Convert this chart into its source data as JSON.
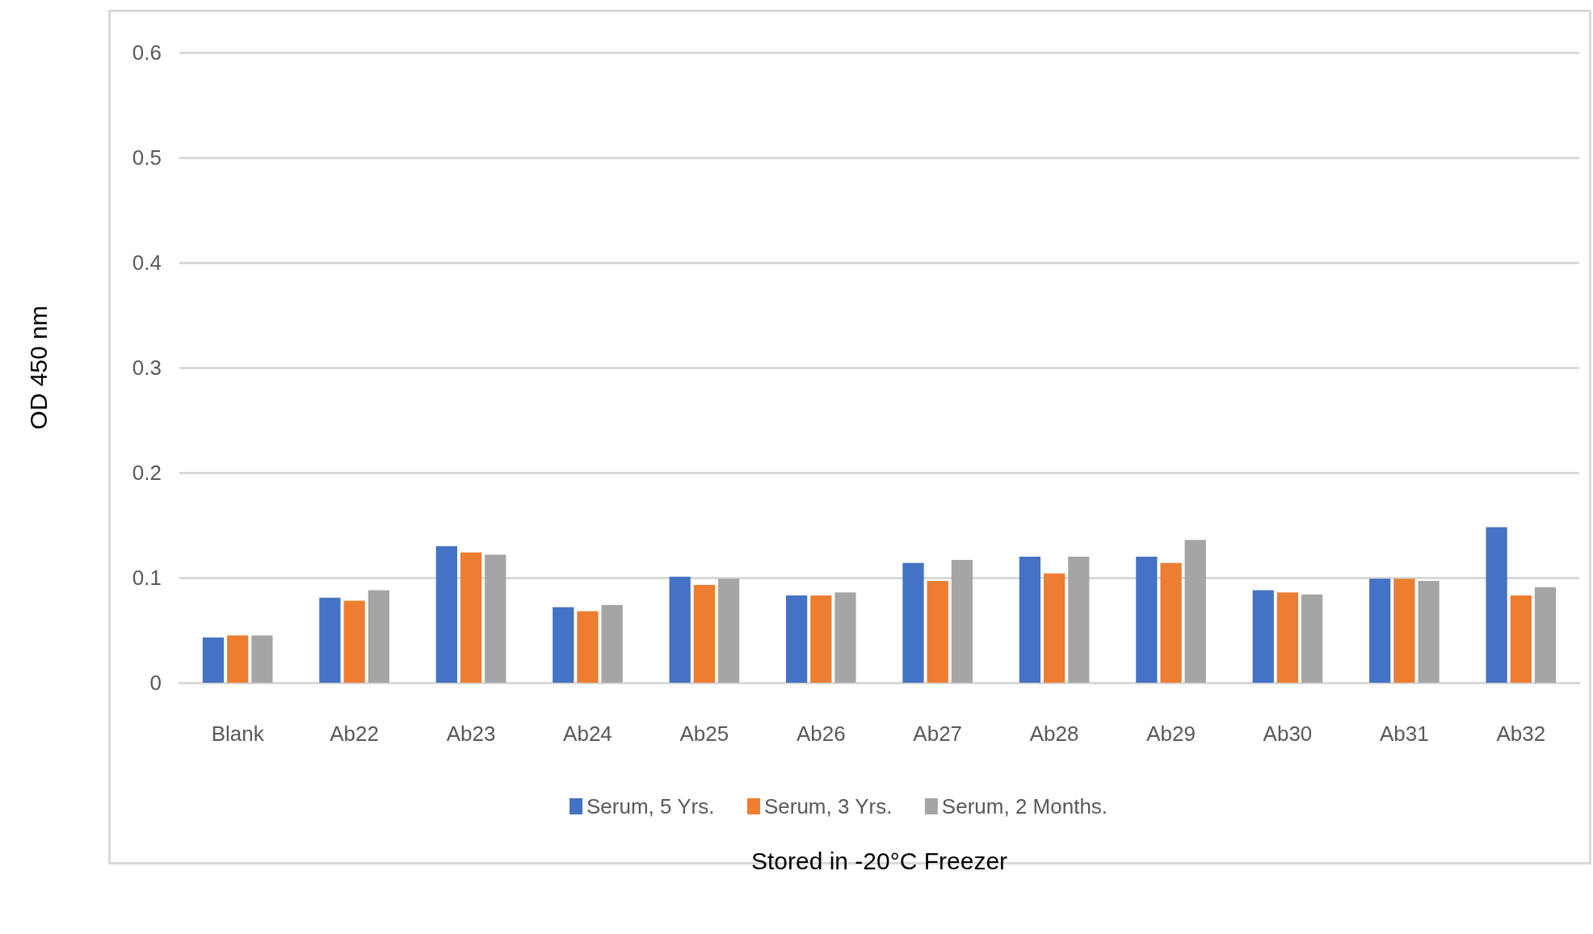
{
  "chart_data": {
    "type": "bar",
    "xlabel": "Stored in -20°C Freezer",
    "ylabel": "OD 450 nm",
    "categories": [
      "Blank",
      "Ab22",
      "Ab23",
      "Ab24",
      "Ab25",
      "Ab26",
      "Ab27",
      "Ab28",
      "Ab29",
      "Ab30",
      "Ab31",
      "Ab32"
    ],
    "series": [
      {
        "name": "Serum, 5 Yrs.",
        "color": "#4472c4",
        "values": [
          0.043,
          0.081,
          0.13,
          0.072,
          0.101,
          0.083,
          0.114,
          0.12,
          0.12,
          0.088,
          0.099,
          0.148
        ]
      },
      {
        "name": "Serum, 3 Yrs.",
        "color": "#ed7d31",
        "values": [
          0.045,
          0.078,
          0.124,
          0.068,
          0.093,
          0.083,
          0.097,
          0.104,
          0.114,
          0.086,
          0.099,
          0.083
        ]
      },
      {
        "name": "Serum, 2 Months.",
        "color": "#a5a5a5",
        "values": [
          0.045,
          0.088,
          0.122,
          0.074,
          0.099,
          0.086,
          0.117,
          0.12,
          0.136,
          0.084,
          0.097,
          0.091
        ]
      }
    ],
    "ylim": [
      0,
      0.6
    ],
    "yticks": [
      0,
      0.1,
      0.2,
      0.3,
      0.4,
      0.5,
      0.6
    ],
    "grid": "y",
    "legend": "bottom"
  }
}
